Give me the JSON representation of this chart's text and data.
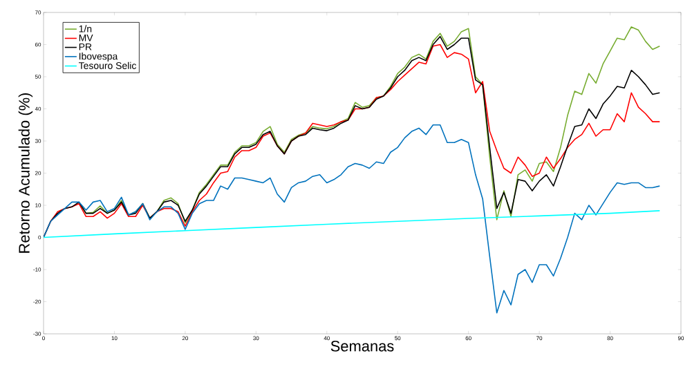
{
  "chart_data": {
    "type": "line",
    "xlabel": "Semanas",
    "ylabel": "Retorno Acumulado (%)",
    "x": [
      0,
      1,
      2,
      3,
      4,
      5,
      6,
      7,
      8,
      9,
      10,
      11,
      12,
      13,
      14,
      15,
      16,
      17,
      18,
      19,
      20,
      21,
      22,
      23,
      24,
      25,
      26,
      27,
      28,
      29,
      30,
      31,
      32,
      33,
      34,
      35,
      36,
      37,
      38,
      39,
      40,
      41,
      42,
      43,
      44,
      45,
      46,
      47,
      48,
      49,
      50,
      51,
      52,
      53,
      54,
      55,
      56,
      57,
      58,
      59,
      60,
      61,
      62,
      63,
      64,
      65,
      66,
      67,
      68,
      69,
      70,
      71,
      72,
      73,
      74,
      75,
      76,
      77,
      78,
      79,
      80,
      81,
      82,
      83,
      84,
      85,
      86,
      87
    ],
    "series": [
      {
        "name": "1/n",
        "color": "#77ac30",
        "values": [
          null,
          null,
          null,
          null,
          null,
          11,
          7.5,
          7.8,
          9.8,
          7.5,
          8.5,
          11.5,
          7,
          8,
          10.5,
          6,
          8,
          11.5,
          12.3,
          10.5,
          4.5,
          8.5,
          14,
          16.5,
          19.5,
          22.5,
          22.5,
          26.5,
          28.5,
          28.5,
          29.5,
          33,
          34.5,
          29,
          26.5,
          30.5,
          31.8,
          32.5,
          34.5,
          34,
          33.8,
          34.5,
          36,
          37,
          42,
          40.5,
          41,
          43.5,
          44,
          47,
          51,
          53,
          56,
          57,
          55.5,
          61,
          63.5,
          59.5,
          61,
          64,
          65,
          50,
          47.5,
          25,
          5.5,
          14.5,
          6.5,
          19.5,
          21,
          17.5,
          23,
          23.5,
          20.5,
          28,
          38,
          45.5,
          44.5,
          51,
          48,
          54,
          58,
          62,
          61.5,
          65.5,
          64.5,
          61,
          58.5,
          59.5
        ]
      },
      {
        "name": "MV",
        "color": "#ff0000",
        "values": [
          0,
          5,
          8,
          9,
          9.5,
          10.5,
          6.5,
          6.5,
          8,
          6,
          7.5,
          10.5,
          6.5,
          6.5,
          10,
          6,
          8,
          9,
          9,
          8,
          3.5,
          8,
          11.5,
          13.5,
          17,
          20,
          20.5,
          25,
          27,
          27,
          28,
          31.5,
          32.5,
          28.5,
          26,
          30,
          31.5,
          32.5,
          35.5,
          35,
          34.5,
          35,
          36,
          36.5,
          40,
          40,
          40.5,
          43.5,
          44,
          46,
          48.5,
          50.5,
          52.5,
          54.5,
          54,
          59.5,
          60,
          56,
          57.5,
          57,
          55.5,
          45,
          48.5,
          33,
          27,
          21.5,
          20,
          25,
          22.5,
          19,
          20,
          25,
          21.5,
          24.5,
          28,
          30.5,
          32,
          35.5,
          31.5,
          33.5,
          33.5,
          38.5,
          36,
          45,
          40.5,
          38.5,
          36,
          36
        ]
      },
      {
        "name": "PR",
        "color": "#000000",
        "values": [
          0,
          5,
          7.5,
          9,
          9.5,
          11,
          7.5,
          7.5,
          9,
          7.5,
          8.5,
          11,
          7,
          7.5,
          10.5,
          6,
          8,
          11,
          11.5,
          10,
          5,
          8.5,
          13.5,
          16,
          19,
          22,
          22,
          26,
          28,
          28,
          29,
          32,
          33,
          28.5,
          26,
          30,
          31.5,
          32,
          34,
          33.5,
          33.2,
          34,
          35.5,
          36.5,
          41,
          40,
          40.5,
          43,
          44,
          46.5,
          50,
          52,
          55,
          56,
          55,
          60,
          62.5,
          58.5,
          60,
          62,
          62,
          49,
          47.5,
          28,
          9,
          14,
          7.5,
          18,
          17.5,
          14.5,
          17.5,
          19.5,
          16,
          22,
          28.5,
          34.5,
          35,
          40,
          37,
          41.5,
          44,
          47,
          46.5,
          52,
          50,
          47.5,
          44.5,
          45
        ]
      },
      {
        "name": "Ibovespa",
        "color": "#0072bd",
        "values": [
          0,
          5,
          7,
          9,
          11,
          11,
          8.5,
          11,
          11.5,
          8,
          9,
          12.5,
          7,
          8,
          10.5,
          5.5,
          8,
          9.5,
          9.5,
          7.5,
          2.5,
          7.5,
          10.5,
          11.5,
          11.5,
          16,
          15,
          18.5,
          18.5,
          18,
          17.5,
          17,
          18.5,
          13.5,
          11,
          15.5,
          17,
          17.5,
          19,
          19.5,
          17,
          18,
          19.5,
          22,
          23,
          22.5,
          21.5,
          23.5,
          23,
          26.5,
          28,
          31,
          33,
          34,
          32,
          35,
          35,
          29.5,
          29.5,
          30.5,
          29.5,
          19.5,
          12,
          -6,
          -23.5,
          -16.5,
          -21,
          -11.5,
          -10,
          -14,
          -8.5,
          -8.5,
          -12,
          -6.5,
          0,
          7.5,
          5.5,
          10,
          7,
          10.5,
          14,
          17,
          16.5,
          17,
          17,
          15.5,
          15.5,
          16
        ]
      },
      {
        "name": "Tesouro Selic",
        "color": "#00ffff",
        "x": [
          0,
          10,
          20,
          30,
          40,
          50,
          60,
          70,
          80,
          87
        ],
        "values": [
          0,
          1.1,
          2.1,
          3.1,
          4.1,
          5.0,
          5.9,
          6.7,
          7.5,
          8.3
        ]
      }
    ],
    "xlim": [
      0,
      90
    ],
    "ylim": [
      -30,
      70
    ],
    "xticks": [
      0,
      10,
      20,
      30,
      40,
      50,
      60,
      70,
      80,
      90
    ],
    "yticks": [
      -30,
      -20,
      -10,
      0,
      10,
      20,
      30,
      40,
      50,
      60,
      70
    ],
    "legend": "top left",
    "grid": false,
    "marker": "none",
    "line_style": "solid"
  }
}
